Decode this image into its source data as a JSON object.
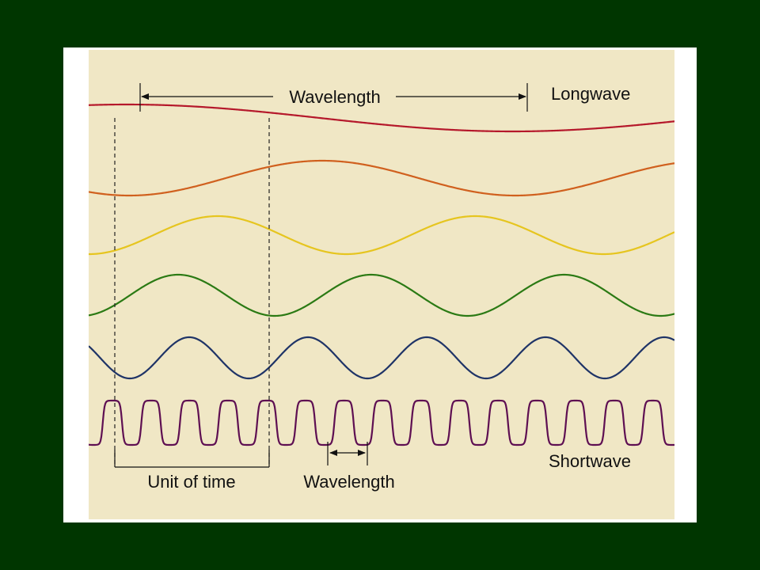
{
  "diagram": {
    "top_wavelength_label": "Wavelength",
    "longwave_label": "Longwave",
    "shortwave_label": "Shortwave",
    "unit_of_time_label": "Unit of time",
    "bottom_wavelength_label": "Wavelength"
  },
  "waves": [
    {
      "name": "longwave",
      "color": "#b5182b",
      "cycles_per_unit_time": 0.2
    },
    {
      "name": "orange-wave",
      "color": "#d0601e",
      "cycles_per_unit_time": 0.4
    },
    {
      "name": "yellow-wave",
      "color": "#e6c51f",
      "cycles_per_unit_time": 0.6
    },
    {
      "name": "green-wave",
      "color": "#2b7a14",
      "cycles_per_unit_time": 0.8
    },
    {
      "name": "blue-wave",
      "color": "#1f3467",
      "cycles_per_unit_time": 1.3
    },
    {
      "name": "shortwave",
      "color": "#5e0f52",
      "cycles_per_unit_time": 4
    }
  ],
  "colors": {
    "outer_background": "#003600",
    "slide_background": "#ffffff",
    "figure_background": "#f0e7c5",
    "line_color": "#111111"
  }
}
